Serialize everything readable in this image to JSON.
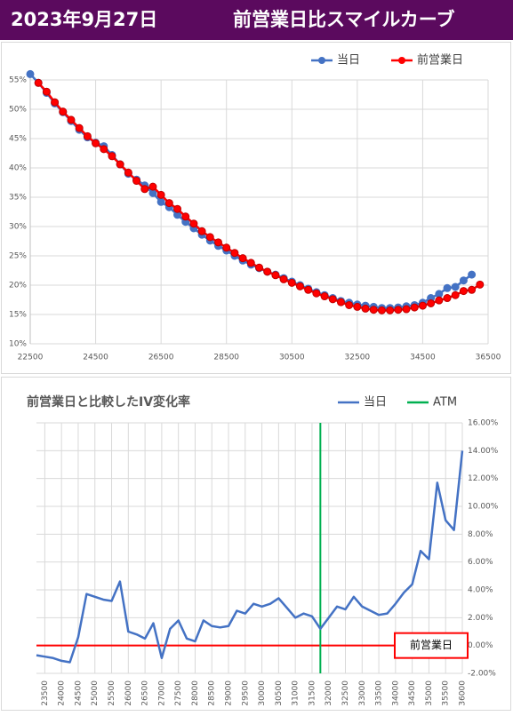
{
  "header": {
    "date": "2023年9月27日",
    "title": "前営業日比スマイルカーブ"
  },
  "chart_data": [
    {
      "type": "line",
      "x": [
        22500,
        22750,
        23000,
        23250,
        23500,
        23750,
        24000,
        24250,
        24500,
        24750,
        25000,
        25250,
        25500,
        25750,
        26000,
        26250,
        26500,
        26750,
        27000,
        27250,
        27500,
        27750,
        28000,
        28250,
        28500,
        28750,
        29000,
        29250,
        29500,
        29750,
        30000,
        30250,
        30500,
        30750,
        31000,
        31250,
        31500,
        31750,
        32000,
        32250,
        32500,
        32750,
        33000,
        33250,
        33500,
        33750,
        34000,
        34250,
        34500,
        34750,
        35000,
        35250,
        35500,
        35750,
        36000,
        36250
      ],
      "series": [
        {
          "name": "当日",
          "color": "#4472c4",
          "values": [
            56,
            54.5,
            52.8,
            51,
            49.5,
            48,
            46.5,
            45.2,
            44.3,
            43.7,
            42.2,
            40.6,
            39,
            38,
            37,
            35.7,
            34.2,
            33.3,
            32,
            30.8,
            29.7,
            28.6,
            27.6,
            26.7,
            25.9,
            25,
            24.2,
            23.5,
            22.9,
            22.3,
            21.8,
            21.2,
            20.6,
            20,
            19.4,
            18.8,
            18.3,
            17.8,
            17.3,
            17,
            16.7,
            16.5,
            16.3,
            16.1,
            16.1,
            16.2,
            16.4,
            16.6,
            17,
            17.8,
            18.5,
            19.5,
            19.7,
            20.8,
            21.8,
            null
          ]
        },
        {
          "name": "前営業日",
          "color": "#ff0000",
          "values": [
            null,
            54.5,
            53,
            51.2,
            49.6,
            48.2,
            46.8,
            45.4,
            44.2,
            43.2,
            42,
            40.6,
            39.2,
            37.8,
            36.4,
            36.8,
            35.4,
            34,
            33,
            31.7,
            30.5,
            29.2,
            28.2,
            27.3,
            26.4,
            25.5,
            24.6,
            23.8,
            23,
            22.3,
            21.7,
            21,
            20.4,
            19.8,
            19.2,
            18.6,
            18.1,
            17.6,
            17.1,
            16.6,
            16.3,
            16,
            15.8,
            15.7,
            15.7,
            15.8,
            15.9,
            16.2,
            16.5,
            16.9,
            17.4,
            17.8,
            18.3,
            19,
            19.2,
            20.1
          ]
        }
      ],
      "xlim": [
        22500,
        36500
      ],
      "xticks": [
        22500,
        24500,
        26500,
        28500,
        30500,
        32500,
        34500,
        36500
      ],
      "ylim": [
        10,
        55
      ],
      "yticks": [
        {
          "value": 10,
          "label": "10%"
        },
        {
          "value": 15,
          "label": "15%"
        },
        {
          "value": 20,
          "label": "20%"
        },
        {
          "value": 25,
          "label": "25%"
        },
        {
          "value": 30,
          "label": "30%"
        },
        {
          "value": 35,
          "label": "35%"
        },
        {
          "value": 40,
          "label": "40%"
        },
        {
          "value": 45,
          "label": "45%"
        },
        {
          "value": 50,
          "label": "50%"
        },
        {
          "value": 55,
          "label": "55%"
        }
      ],
      "grid": true,
      "markers": true,
      "legend": "top-right"
    },
    {
      "type": "line",
      "title": "前営業日と比較したIV変化率",
      "x": [
        23250,
        23500,
        23750,
        24000,
        24250,
        24500,
        24750,
        25000,
        25250,
        25500,
        25750,
        26000,
        26250,
        26500,
        26750,
        27000,
        27250,
        27500,
        27750,
        28000,
        28250,
        28500,
        28750,
        29000,
        29250,
        29500,
        29750,
        30000,
        30250,
        30500,
        30750,
        31000,
        31250,
        31500,
        31750,
        32000,
        32250,
        32500,
        32750,
        33000,
        33250,
        33500,
        33750,
        34000,
        34250,
        34500,
        34750,
        35000,
        35250,
        35500,
        35750,
        36000
      ],
      "series": [
        {
          "name": "当日",
          "color": "#4472c4",
          "values": [
            -0.7,
            -0.8,
            -0.9,
            -1.1,
            -1.2,
            0.6,
            3.7,
            3.5,
            3.3,
            3.2,
            4.6,
            1,
            0.8,
            0.5,
            1.6,
            -0.9,
            1.2,
            1.8,
            0.5,
            0.3,
            1.8,
            1.4,
            1.3,
            1.4,
            2.5,
            2.3,
            3,
            2.8,
            3,
            3.4,
            2.7,
            2,
            2.3,
            2.1,
            1.2,
            2,
            2.8,
            2.6,
            3.5,
            2.8,
            2.5,
            2.2,
            2.3,
            3,
            3.8,
            4.4,
            6.8,
            6.2,
            11.7,
            9,
            8.3,
            14
          ]
        }
      ],
      "atm": {
        "name": "ATM",
        "color": "#00b050",
        "x": 31750
      },
      "reference": {
        "name": "前営業日",
        "color": "#ff0000",
        "value": 0
      },
      "xlim": [
        23250,
        36000
      ],
      "xticks": [
        23500,
        24000,
        24500,
        25000,
        25500,
        26000,
        26500,
        27000,
        27500,
        28000,
        28500,
        29000,
        29500,
        30000,
        30500,
        31000,
        31500,
        32000,
        32500,
        33000,
        33500,
        34000,
        34500,
        35000,
        35500,
        36000
      ],
      "ylim": [
        -2,
        16
      ],
      "yticks": [
        {
          "value": -2,
          "label": "-2.00%"
        },
        {
          "value": 0,
          "label": "0.00%"
        },
        {
          "value": 2,
          "label": "2.00%"
        },
        {
          "value": 4,
          "label": "4.00%"
        },
        {
          "value": 6,
          "label": "6.00%"
        },
        {
          "value": 8,
          "label": "8.00%"
        },
        {
          "value": 10,
          "label": "10.00%"
        },
        {
          "value": 12,
          "label": "12.00%"
        },
        {
          "value": 14,
          "label": "14.00%"
        },
        {
          "value": 16,
          "label": "16.00%"
        }
      ],
      "grid": true,
      "markers": false,
      "legend": "top-right"
    }
  ]
}
